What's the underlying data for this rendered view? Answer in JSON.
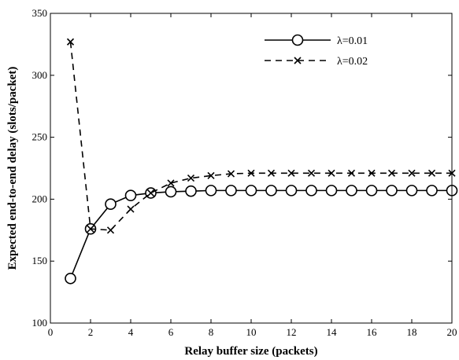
{
  "chart_data": {
    "type": "line",
    "xlabel": "Relay buffer size (packets)",
    "ylabel": "Expected end-to-end delay (slots/packet)",
    "xlim": [
      0,
      20
    ],
    "ylim": [
      100,
      350
    ],
    "xticks": [
      "0",
      "2",
      "4",
      "6",
      "8",
      "10",
      "12",
      "14",
      "16",
      "18",
      "20"
    ],
    "yticks": [
      "100",
      "150",
      "200",
      "250",
      "300",
      "350"
    ],
    "grid": false,
    "legend_position": "top-right",
    "x": [
      1,
      2,
      3,
      4,
      5,
      6,
      7,
      8,
      9,
      10,
      11,
      12,
      13,
      14,
      15,
      16,
      17,
      18,
      19,
      20
    ],
    "series": [
      {
        "name": "λ=0.01",
        "line_style": "solid",
        "marker": "circle",
        "color": "#000000",
        "values": [
          136,
          176,
          196,
          203,
          205,
          206,
          206.5,
          207,
          207,
          207,
          207,
          207,
          207,
          207,
          207,
          207,
          207,
          207,
          207,
          207
        ]
      },
      {
        "name": "λ=0.02",
        "line_style": "dashed",
        "marker": "x",
        "color": "#000000",
        "values": [
          327,
          176,
          175,
          192,
          205,
          213,
          217,
          219,
          220.5,
          221,
          221,
          221,
          221,
          221,
          221,
          221,
          221,
          221,
          221,
          221
        ]
      }
    ]
  }
}
